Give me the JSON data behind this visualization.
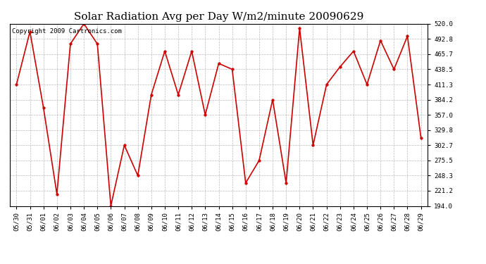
{
  "title": "Solar Radiation Avg per Day W/m2/minute 20090629",
  "copyright": "Copyright 2009 Cartronics.com",
  "dates": [
    "05/30",
    "05/31",
    "06/01",
    "06/02",
    "06/03",
    "06/04",
    "06/05",
    "06/06",
    "06/07",
    "06/08",
    "06/09",
    "06/10",
    "06/11",
    "06/12",
    "06/13",
    "06/14",
    "06/15",
    "06/16",
    "06/17",
    "06/18",
    "06/19",
    "06/20",
    "06/21",
    "06/22",
    "06/23",
    "06/24",
    "06/25",
    "06/26",
    "06/27",
    "06/28",
    "06/29"
  ],
  "values": [
    411.3,
    506.0,
    370.0,
    215.0,
    484.0,
    520.0,
    484.0,
    194.0,
    302.7,
    248.3,
    393.0,
    471.0,
    393.0,
    471.0,
    357.0,
    449.0,
    438.5,
    235.0,
    275.5,
    384.2,
    235.0,
    512.0,
    302.7,
    411.3,
    443.0,
    471.0,
    411.3,
    490.0,
    438.5,
    498.0,
    316.0
  ],
  "line_color": "#cc0000",
  "marker": "o",
  "marker_size": 2.5,
  "bg_color": "#ffffff",
  "grid_color": "#bbbbbb",
  "ylim": [
    194.0,
    520.0
  ],
  "yticks": [
    194.0,
    221.2,
    248.3,
    275.5,
    302.7,
    329.8,
    357.0,
    384.2,
    411.3,
    438.5,
    465.7,
    492.8,
    520.0
  ],
  "ytick_labels": [
    "194.0",
    "221.2",
    "248.3",
    "275.5",
    "302.7",
    "329.8",
    "357.0",
    "384.2",
    "411.3",
    "438.5",
    "465.7",
    "492.8",
    "520.0"
  ],
  "title_fontsize": 11,
  "copyright_fontsize": 6.5,
  "tick_fontsize": 6.5,
  "figwidth": 6.9,
  "figheight": 3.75,
  "dpi": 100
}
